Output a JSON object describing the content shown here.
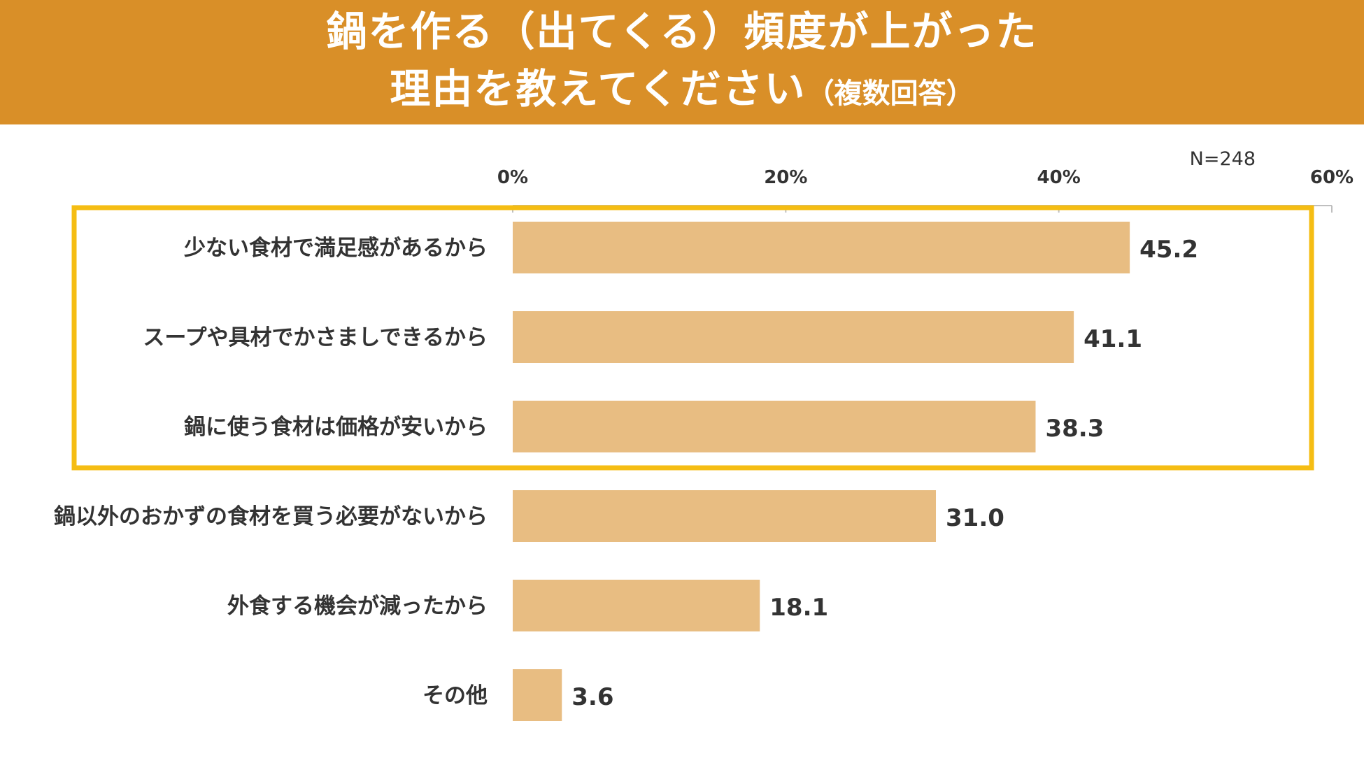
{
  "header": {
    "line1": "鍋を作る（出てくる）頻度が上がった",
    "line2_main": "理由を教えてください",
    "line2_sub": "（複数回答）"
  },
  "colors": {
    "header_bg": "#D98F28",
    "bar": "#E8BD82",
    "highlight_box": "#F5BD13",
    "axis": "#BFBFBF",
    "text": "#333333"
  },
  "chart_data": {
    "type": "bar",
    "orientation": "horizontal",
    "title": "鍋を作る（出てくる）頻度が上がった 理由を教えてください（複数回答）",
    "sample_size": "N=248",
    "x_ticks": [
      "0%",
      "20%",
      "40%",
      "60%"
    ],
    "xlim": [
      0,
      60
    ],
    "categories": [
      "少ない食材で満足感があるから",
      "スープや具材でかさましできるから",
      "鍋に使う食材は価格が安いから",
      "鍋以外のおかずの食材を買う必要がないから",
      "外食する機会が減ったから",
      "その他"
    ],
    "values": [
      45.2,
      41.1,
      38.3,
      31.0,
      18.1,
      3.6
    ],
    "value_labels": [
      "45.2",
      "41.1",
      "38.3",
      "31.0",
      "18.1",
      "3.6"
    ],
    "highlighted_categories": [
      0,
      1,
      2
    ]
  }
}
